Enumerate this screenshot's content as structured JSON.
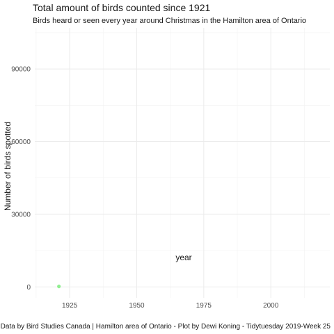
{
  "chart_data": {
    "type": "scatter",
    "title": "Total amount of birds counted since 1921",
    "subtitle": "Birds heard or seen every year around Christmas in the Hamilton area of Ontario",
    "xlabel": "year",
    "ylabel": "Number of birds spotted",
    "caption": "Data by Bird Studies Canada | Hamilton area of Ontario - Plot by Dewi Koning - Tidytuesday 2019-Week 25",
    "xlim": [
      1912,
      2022
    ],
    "ylim": [
      -4500,
      107000
    ],
    "xticks": [
      1925,
      1950,
      1975,
      2000
    ],
    "yticks": [
      0,
      30000,
      60000,
      90000
    ],
    "grid": true,
    "legend": "none",
    "point_color": "#90ee90",
    "points": [
      {
        "x": 1921,
        "y": 200
      }
    ]
  }
}
